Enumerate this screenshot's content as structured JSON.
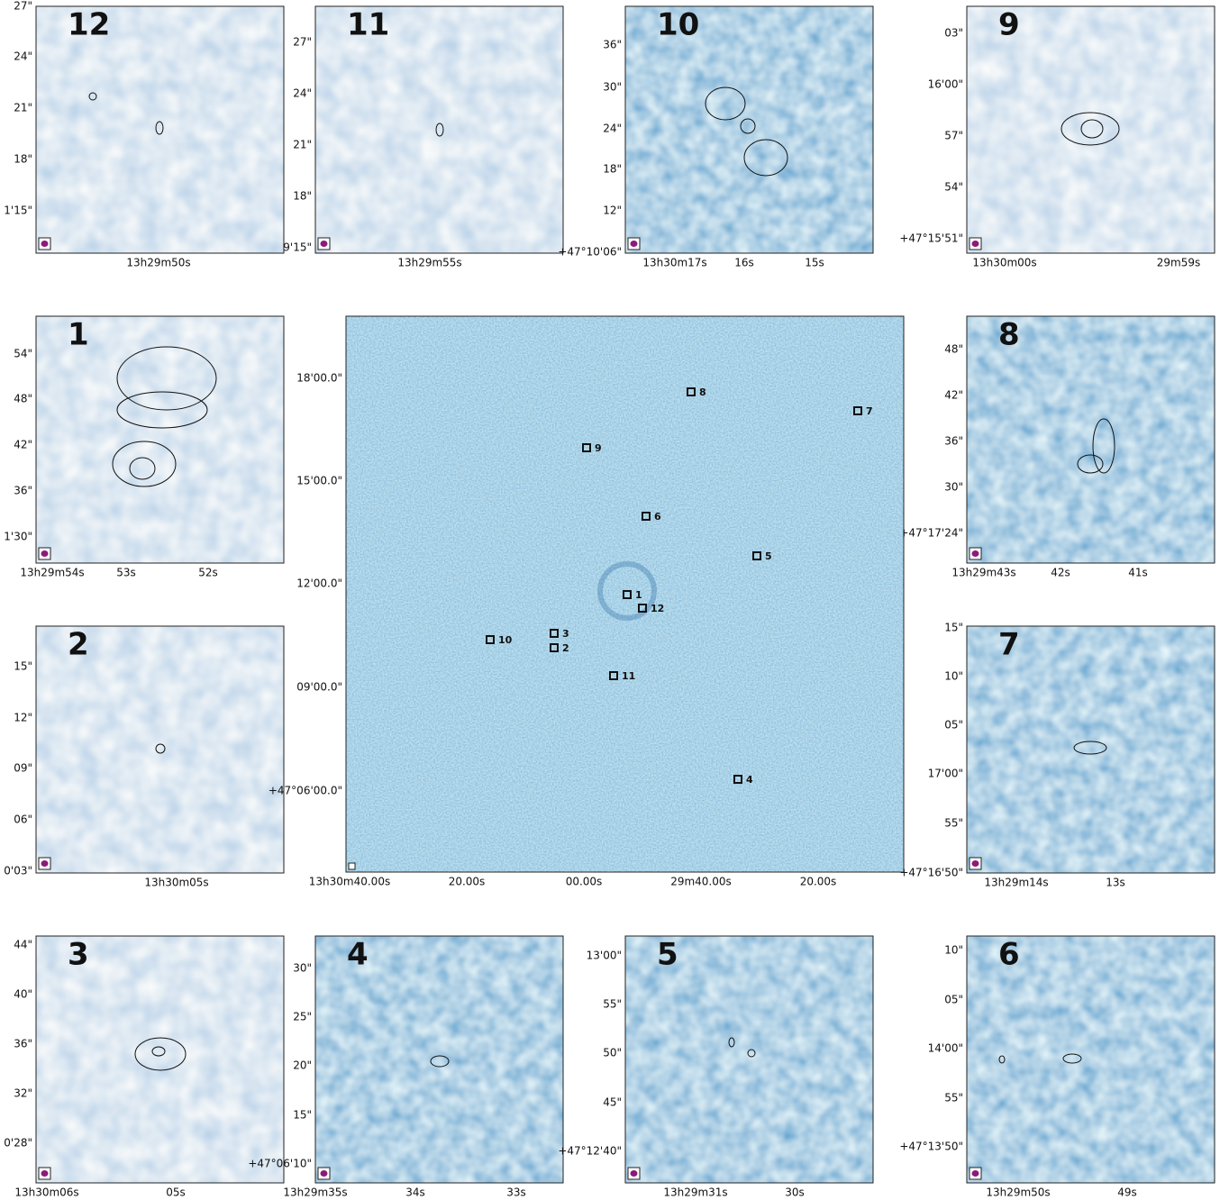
{
  "panels": [
    {
      "label": "12",
      "yticks": [
        "27\"",
        "24\"",
        "21\"",
        "18\"",
        "1'15\""
      ],
      "xticks": [
        "13h29m50s"
      ]
    },
    {
      "label": "11",
      "yticks": [
        "27\"",
        "24\"",
        "21\"",
        "18\"",
        "9'15\""
      ],
      "xticks": [
        "13h29m55s"
      ]
    },
    {
      "label": "10",
      "yticks": [
        "36\"",
        "30\"",
        "24\"",
        "18\"",
        "12\"",
        "+47°10'06\""
      ],
      "xticks": [
        "13h30m17s",
        "16s",
        "15s"
      ]
    },
    {
      "label": "9",
      "yticks": [
        "03\"",
        "16'00\"",
        "57\"",
        "54\"",
        "+47°15'51\""
      ],
      "xticks": [
        "13h30m00s",
        "29m59s"
      ]
    },
    {
      "label": "1",
      "yticks": [
        "54\"",
        "48\"",
        "42\"",
        "36\"",
        "1'30\""
      ],
      "xticks": [
        "13h29m54s",
        "53s",
        "52s"
      ]
    },
    {
      "label": "8",
      "yticks": [
        "48\"",
        "42\"",
        "36\"",
        "30\"",
        "+47°17'24\""
      ],
      "xticks": [
        "13h29m43s",
        "42s",
        "41s"
      ]
    },
    {
      "label": "2",
      "yticks": [
        "15\"",
        "12\"",
        "09\"",
        "06\"",
        "0'03\""
      ],
      "xticks": [
        "13h30m05s"
      ]
    },
    {
      "label": "7",
      "yticks": [
        "15\"",
        "10\"",
        "05\"",
        "17'00\"",
        "55\"",
        "+47°16'50\""
      ],
      "xticks": [
        "13h29m14s",
        "13s"
      ]
    },
    {
      "label": "3",
      "yticks": [
        "44\"",
        "40\"",
        "36\"",
        "32\"",
        "0'28\""
      ],
      "xticks": [
        "13h30m06s",
        "05s"
      ]
    },
    {
      "label": "4",
      "yticks": [
        "30\"",
        "25\"",
        "20\"",
        "15\"",
        "+47°06'10\""
      ],
      "xticks": [
        "13h29m35s",
        "34s",
        "33s"
      ]
    },
    {
      "label": "5",
      "yticks": [
        "13'00\"",
        "55\"",
        "50\"",
        "45\"",
        "+47°12'40\""
      ],
      "xticks": [
        "13h29m31s",
        "30s"
      ]
    },
    {
      "label": "6",
      "yticks": [
        "10\"",
        "05\"",
        "14'00\"",
        "55\"",
        "+47°13'50\""
      ],
      "xticks": [
        "13h29m50s",
        "49s"
      ]
    }
  ],
  "overview": {
    "yticks": [
      "18'00.0\"",
      "15'00.0\"",
      "12'00.0\"",
      "09'00.0\"",
      "+47°06'00.0\""
    ],
    "xticks": [
      "13h30m40.00s",
      "20.00s",
      "00.00s",
      "29m40.00s",
      "20.00s"
    ],
    "markers": [
      "8",
      "7",
      "9",
      "6",
      "5",
      "1",
      "12",
      "3",
      "2",
      "10",
      "11",
      "4"
    ]
  }
}
